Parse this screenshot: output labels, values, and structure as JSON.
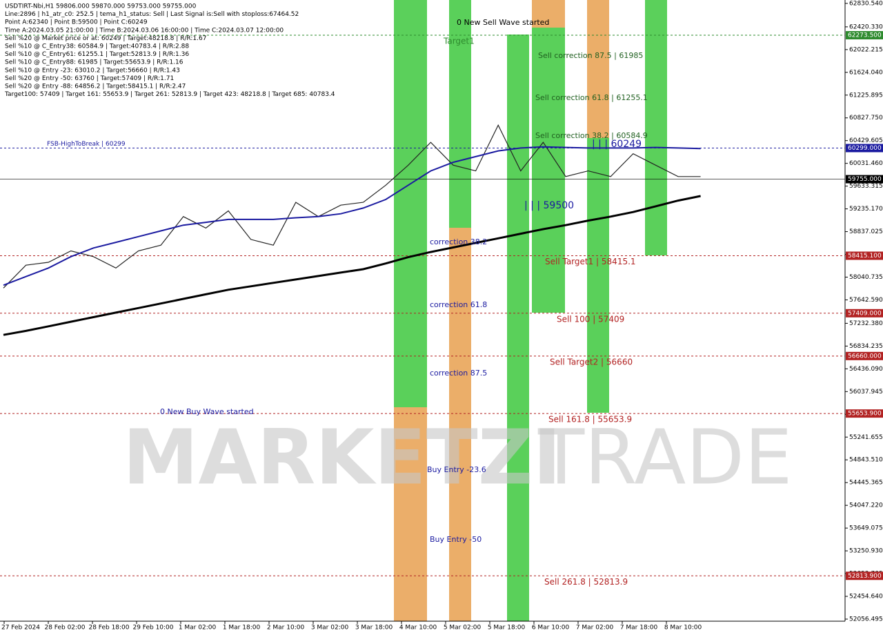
{
  "chart_data": {
    "type": "line",
    "info": [
      "USDTIRT-Nbi,H1  59806.000 59870.000 59753.000 59755.000",
      "Line:2896 | h1_atr_c0: 252.5 | tema_h1_status: Sell | Last Signal is:Sell with stoploss:67464.52",
      "Point A:62340 | Point B:59500 | Point C:60249",
      "Time A:2024.03.05 21:00:00 | Time B:2024.03.06 16:00:00 | Time C:2024.03.07 12:00:00",
      "Sell %20 @ Market price or at: 60249 | Target:48218.8 | R/R:1.67",
      "Sell %10 @ C_Entry38: 60584.9 | Target:40783.4 | R/R:2.88",
      "Sell %10 @ C_Entry61: 61255.1 | Target:52813.9 | R/R:1.36",
      "Sell %10 @ C_Entry88: 61985 | Target:55653.9 | R/R:1.16",
      "Sell %10 @ Entry -23: 63010.2 | Target:56660 | R/R:1.43",
      "Sell %20 @ Entry -50: 63760 | Target:57409 | R/R:1.71",
      "Sell %20 @ Entry -88: 64856.2 | Target:58415.1 | R/R:2.47",
      "Target100: 57409 | Target 161: 55653.9 | Target 261: 52813.9 | Target 423: 48218.8 | Target 685: 40783.4"
    ],
    "x_labels": [
      "27 Feb 2024",
      "28 Feb 02:00",
      "28 Feb 18:00",
      "29 Feb 10:00",
      "1 Mar 02:00",
      "1 Mar 18:00",
      "2 Mar 10:00",
      "3 Mar 02:00",
      "3 Mar 18:00",
      "4 Mar 10:00",
      "5 Mar 02:00",
      "5 Mar 18:00",
      "6 Mar 10:00",
      "7 Mar 02:00",
      "7 Mar 18:00",
      "8 Mar 10:00"
    ],
    "series": [
      {
        "name": "price",
        "color": "#222222",
        "values": [
          57850,
          58250,
          58300,
          58500,
          58400,
          58200,
          58500,
          58600,
          59100,
          58900,
          59200,
          58700,
          58600,
          59350,
          59100,
          59300,
          59350,
          59650,
          60000,
          60400,
          60000,
          59900,
          60700,
          59900,
          60400,
          59800,
          59900,
          59800,
          60200,
          60000,
          59800,
          59800
        ]
      },
      {
        "name": "MA blue",
        "color": "#1a1aa0",
        "values": [
          57900,
          58050,
          58200,
          58400,
          58550,
          58650,
          58750,
          58850,
          58950,
          59000,
          59050,
          59050,
          59050,
          59080,
          59100,
          59150,
          59250,
          59400,
          59650,
          59900,
          60050,
          60150,
          60250,
          60300,
          60320,
          60310,
          60300,
          60300,
          60300,
          60310,
          60300,
          60290
        ]
      },
      {
        "name": "MA black",
        "color": "#000000",
        "values": [
          57030,
          57100,
          57180,
          57260,
          57340,
          57420,
          57500,
          57580,
          57660,
          57740,
          57820,
          57880,
          57940,
          58000,
          58060,
          58120,
          58180,
          58280,
          58390,
          58480,
          58560,
          58640,
          58720,
          58800,
          58880,
          58950,
          59030,
          59100,
          59180,
          59280,
          59380,
          59460
        ]
      }
    ],
    "ylim": [
      52020,
      62890
    ],
    "yticks": [
      {
        "value": 62830.54,
        "label": "62830.540"
      },
      {
        "value": 62420.33,
        "label": "62420.330"
      },
      {
        "value": 62022.215,
        "label": "62022.215"
      },
      {
        "value": 61624.04,
        "label": "61624.040"
      },
      {
        "value": 61225.895,
        "label": "61225.895"
      },
      {
        "value": 60827.75,
        "label": "60827.750"
      },
      {
        "value": 60429.605,
        "label": "60429.605"
      },
      {
        "value": 60031.46,
        "label": "60031.460"
      },
      {
        "value": 59633.315,
        "label": "59633.315"
      },
      {
        "value": 59235.17,
        "label": "59235.170"
      },
      {
        "value": 58837.025,
        "label": "58837.025"
      },
      {
        "value": 58438.88,
        "label": "58438.880"
      },
      {
        "value": 58040.735,
        "label": "58040.735"
      },
      {
        "value": 57642.59,
        "label": "57642.590"
      },
      {
        "value": 57232.38,
        "label": "57232.380"
      },
      {
        "value": 56834.235,
        "label": "56834.235"
      },
      {
        "value": 56436.09,
        "label": "56436.090"
      },
      {
        "value": 56037.945,
        "label": "56037.945"
      },
      {
        "value": 55639.8,
        "label": "55639.800"
      },
      {
        "value": 55241.655,
        "label": "55241.655"
      },
      {
        "value": 54843.51,
        "label": "54843.510"
      },
      {
        "value": 54445.365,
        "label": "54445.365"
      },
      {
        "value": 54047.22,
        "label": "54047.220"
      },
      {
        "value": 53649.075,
        "label": "53649.075"
      },
      {
        "value": 53250.93,
        "label": "53250.930"
      },
      {
        "value": 52852.785,
        "label": "52852.785"
      },
      {
        "value": 52454.64,
        "label": "52454.640"
      },
      {
        "value": 52056.495,
        "label": "52056.495"
      }
    ],
    "levels": [
      {
        "value": 62273.5,
        "tag": "62273.500",
        "color": "#2e8b2e",
        "text": "Target1"
      },
      {
        "value": 60299,
        "tag": "60299.000",
        "color": "#1a1aa0",
        "text": "FSB-HighToBreak | 60299"
      },
      {
        "value": 59755,
        "tag": "59755.000",
        "color": "#000000"
      },
      {
        "value": 58415.1,
        "tag": "58415.100",
        "color": "#b22222",
        "text": "Sell Target1 | 58415.1"
      },
      {
        "value": 57409,
        "tag": "57409.000",
        "color": "#b22222",
        "text": "Sell 100 | 57409"
      },
      {
        "value": 56660,
        "tag": "56660.000",
        "color": "#b22222",
        "text": "Sell Target2 | 56660"
      },
      {
        "value": 55653.9,
        "tag": "55653.900",
        "color": "#b22222",
        "text": "Sell 161.8 | 55653.9"
      },
      {
        "value": 52813.9,
        "tag": "52813.900",
        "color": "#b22222",
        "text": "Sell  261.8 | 52813.9"
      }
    ],
    "annotations": [
      {
        "text": "0 New Sell Wave started",
        "color": "#000000"
      },
      {
        "text": "0 New Buy Wave started",
        "color": "#1a1aa0"
      },
      {
        "text": "correction 38.2",
        "color": "#1a1aa0"
      },
      {
        "text": "correction 61.8",
        "color": "#1a1aa0"
      },
      {
        "text": "correction 87.5",
        "color": "#1a1aa0"
      },
      {
        "text": "Buy Entry -23.6",
        "color": "#1a1aa0"
      },
      {
        "text": "Buy Entry -50",
        "color": "#1a1aa0"
      },
      {
        "text": "Sell correction 87.5 | 61985",
        "color": "#1f5f1f"
      },
      {
        "text": "Sell correction 61.8 | 61255.1",
        "color": "#1f5f1f"
      },
      {
        "text": "Sell correction 38.2 | 60584.9",
        "color": "#1f5f1f"
      },
      {
        "text": "| | | 60249",
        "color": "#1a1aa0"
      },
      {
        "text": "| | | 59500",
        "color": "#1a1aa0"
      }
    ],
    "watermark": [
      "MARKETZI",
      "TRADE"
    ]
  }
}
